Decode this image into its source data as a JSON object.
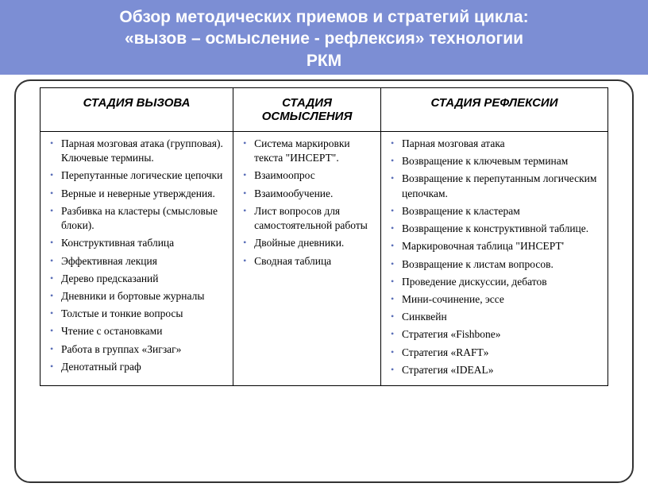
{
  "title": {
    "line1": "Обзор методических приемов и стратегий цикла:",
    "line2": "«вызов – осмысление - рефлексия» технологии",
    "line3": "РКМ"
  },
  "table": {
    "headers": {
      "col1": "СТАДИЯ ВЫЗОВА",
      "col2": "СТАДИЯ ОСМЫСЛЕНИЯ",
      "col3": "СТАДИЯ РЕФЛЕКСИИ"
    },
    "col1_items": [
      "Парная мозговая атака (групповая). Ключевые термины.",
      "Перепутанные логические цепочки",
      "Верные и неверные утверждения.",
      "Разбивка на кластеры (смысловые блоки).",
      "Конструктивная таблица",
      "Эффективная лекция",
      "Дерево предсказаний",
      "Дневники и бортовые журналы",
      "Толстые и тонкие вопросы",
      "Чтение с остановками",
      "Работа в группах «Зигзаг»",
      "Денотатный граф"
    ],
    "col2_items": [
      "Система маркировки текста \"ИНСЕРТ\".",
      "Взаимоопрос",
      "Взаимообучение.",
      "Лист вопросов для самостоятельной работы",
      "Двойные дневники.",
      "Сводная таблица"
    ],
    "col3_items": [
      "Парная мозговая атака",
      "Возвращение к ключевым терминам",
      "Возвращение к перепутанным логическим цепочкам.",
      "Возвращение к кластерам",
      "Возвращение к конструктивной таблице.",
      "Маркировочная таблица \"ИНСЕРТ'",
      "Возвращение к листам вопросов.",
      "Проведение дискуссии, дебатов",
      "Мини-сочинение, эссе",
      "Синквейн",
      "Стратегия «Fishbone»",
      "Стратегия «RAFT»",
      "Стратегия «IDEAL»"
    ]
  },
  "colors": {
    "title_bg": "#7c8ed4",
    "title_text": "#ffffff",
    "border": "#000000",
    "bullet": "#5b6fb8",
    "page_bg": "#ffffff"
  }
}
